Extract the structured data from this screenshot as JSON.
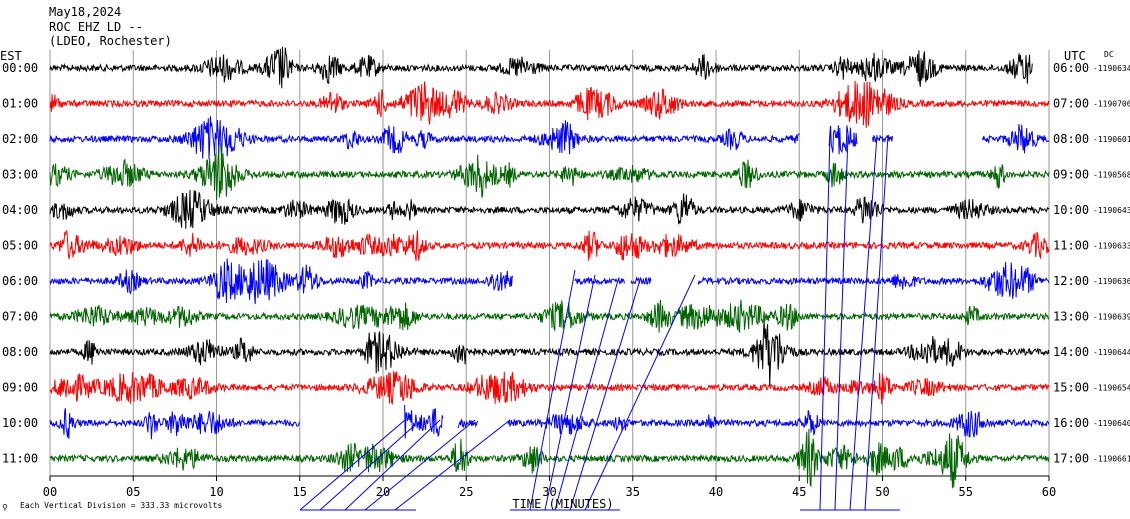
{
  "header": {
    "date": "May18,2024",
    "station": "ROC EHZ LD --",
    "network": "(LDEO, Rochester)"
  },
  "labels": {
    "left_zone": "EST",
    "right_zone": "UTC",
    "dc_label": "DC",
    "xlabel": "TIME (MINUTES)",
    "scale_note": "Each Vertical Division =  333.33 microvolts"
  },
  "colors": {
    "black": "#000000",
    "red": "#ff0000",
    "blue": "#0000ff",
    "green": "#006400",
    "grid": "#999999"
  },
  "chart_data": {
    "type": "line",
    "title": "May18,2024",
    "xlabel": "TIME (MINUTES)",
    "xlim": [
      0,
      60
    ],
    "x_ticks": [
      "00",
      "05",
      "10",
      "15",
      "20",
      "25",
      "30",
      "35",
      "40",
      "45",
      "50",
      "55",
      "60"
    ],
    "grid": true,
    "series": [
      {
        "est": "00:00",
        "utc": "06:00",
        "dc": "-1190634",
        "color": "black",
        "start": 0,
        "end": 59.0,
        "gaps": []
      },
      {
        "est": "01:00",
        "utc": "07:00",
        "dc": "-1190706",
        "color": "red",
        "start": 0,
        "end": 60,
        "gaps": []
      },
      {
        "est": "02:00",
        "utc": "08:00",
        "dc": "-1190601",
        "color": "blue",
        "start": 0,
        "end": 60,
        "gaps": [
          [
            45.0,
            46.8
          ],
          [
            48.5,
            49.4
          ],
          [
            50.6,
            56.0
          ]
        ]
      },
      {
        "est": "03:00",
        "utc": "09:00",
        "dc": "-1190568",
        "color": "green",
        "start": 0,
        "end": 60,
        "gaps": []
      },
      {
        "est": "04:00",
        "utc": "10:00",
        "dc": "-1190643",
        "color": "black",
        "start": 0,
        "end": 60,
        "gaps": []
      },
      {
        "est": "05:00",
        "utc": "11:00",
        "dc": "-1190633",
        "color": "red",
        "start": 0,
        "end": 60,
        "gaps": []
      },
      {
        "est": "06:00",
        "utc": "12:00",
        "dc": "-1190636",
        "color": "blue",
        "start": 0,
        "end": 60,
        "gaps": [
          [
            27.8,
            31.5
          ],
          [
            34.5,
            34.9
          ],
          [
            36.1,
            38.9
          ]
        ]
      },
      {
        "est": "07:00",
        "utc": "13:00",
        "dc": "-1190639",
        "color": "green",
        "start": 0,
        "end": 60,
        "gaps": []
      },
      {
        "est": "08:00",
        "utc": "14:00",
        "dc": "-1190644",
        "color": "black",
        "start": 0,
        "end": 60,
        "gaps": []
      },
      {
        "est": "09:00",
        "utc": "15:00",
        "dc": "-1190654",
        "color": "red",
        "start": 0,
        "end": 60,
        "gaps": []
      },
      {
        "est": "10:00",
        "utc": "16:00",
        "dc": "-1190640",
        "color": "blue",
        "start": 0,
        "end": 60,
        "gaps": [
          [
            15.0,
            21.3
          ],
          [
            23.6,
            24.5
          ],
          [
            25.7,
            27.5
          ]
        ]
      },
      {
        "est": "11:00",
        "utc": "17:00",
        "dc": "-1190661",
        "color": "green",
        "start": 0,
        "end": 60,
        "gaps": []
      }
    ]
  }
}
